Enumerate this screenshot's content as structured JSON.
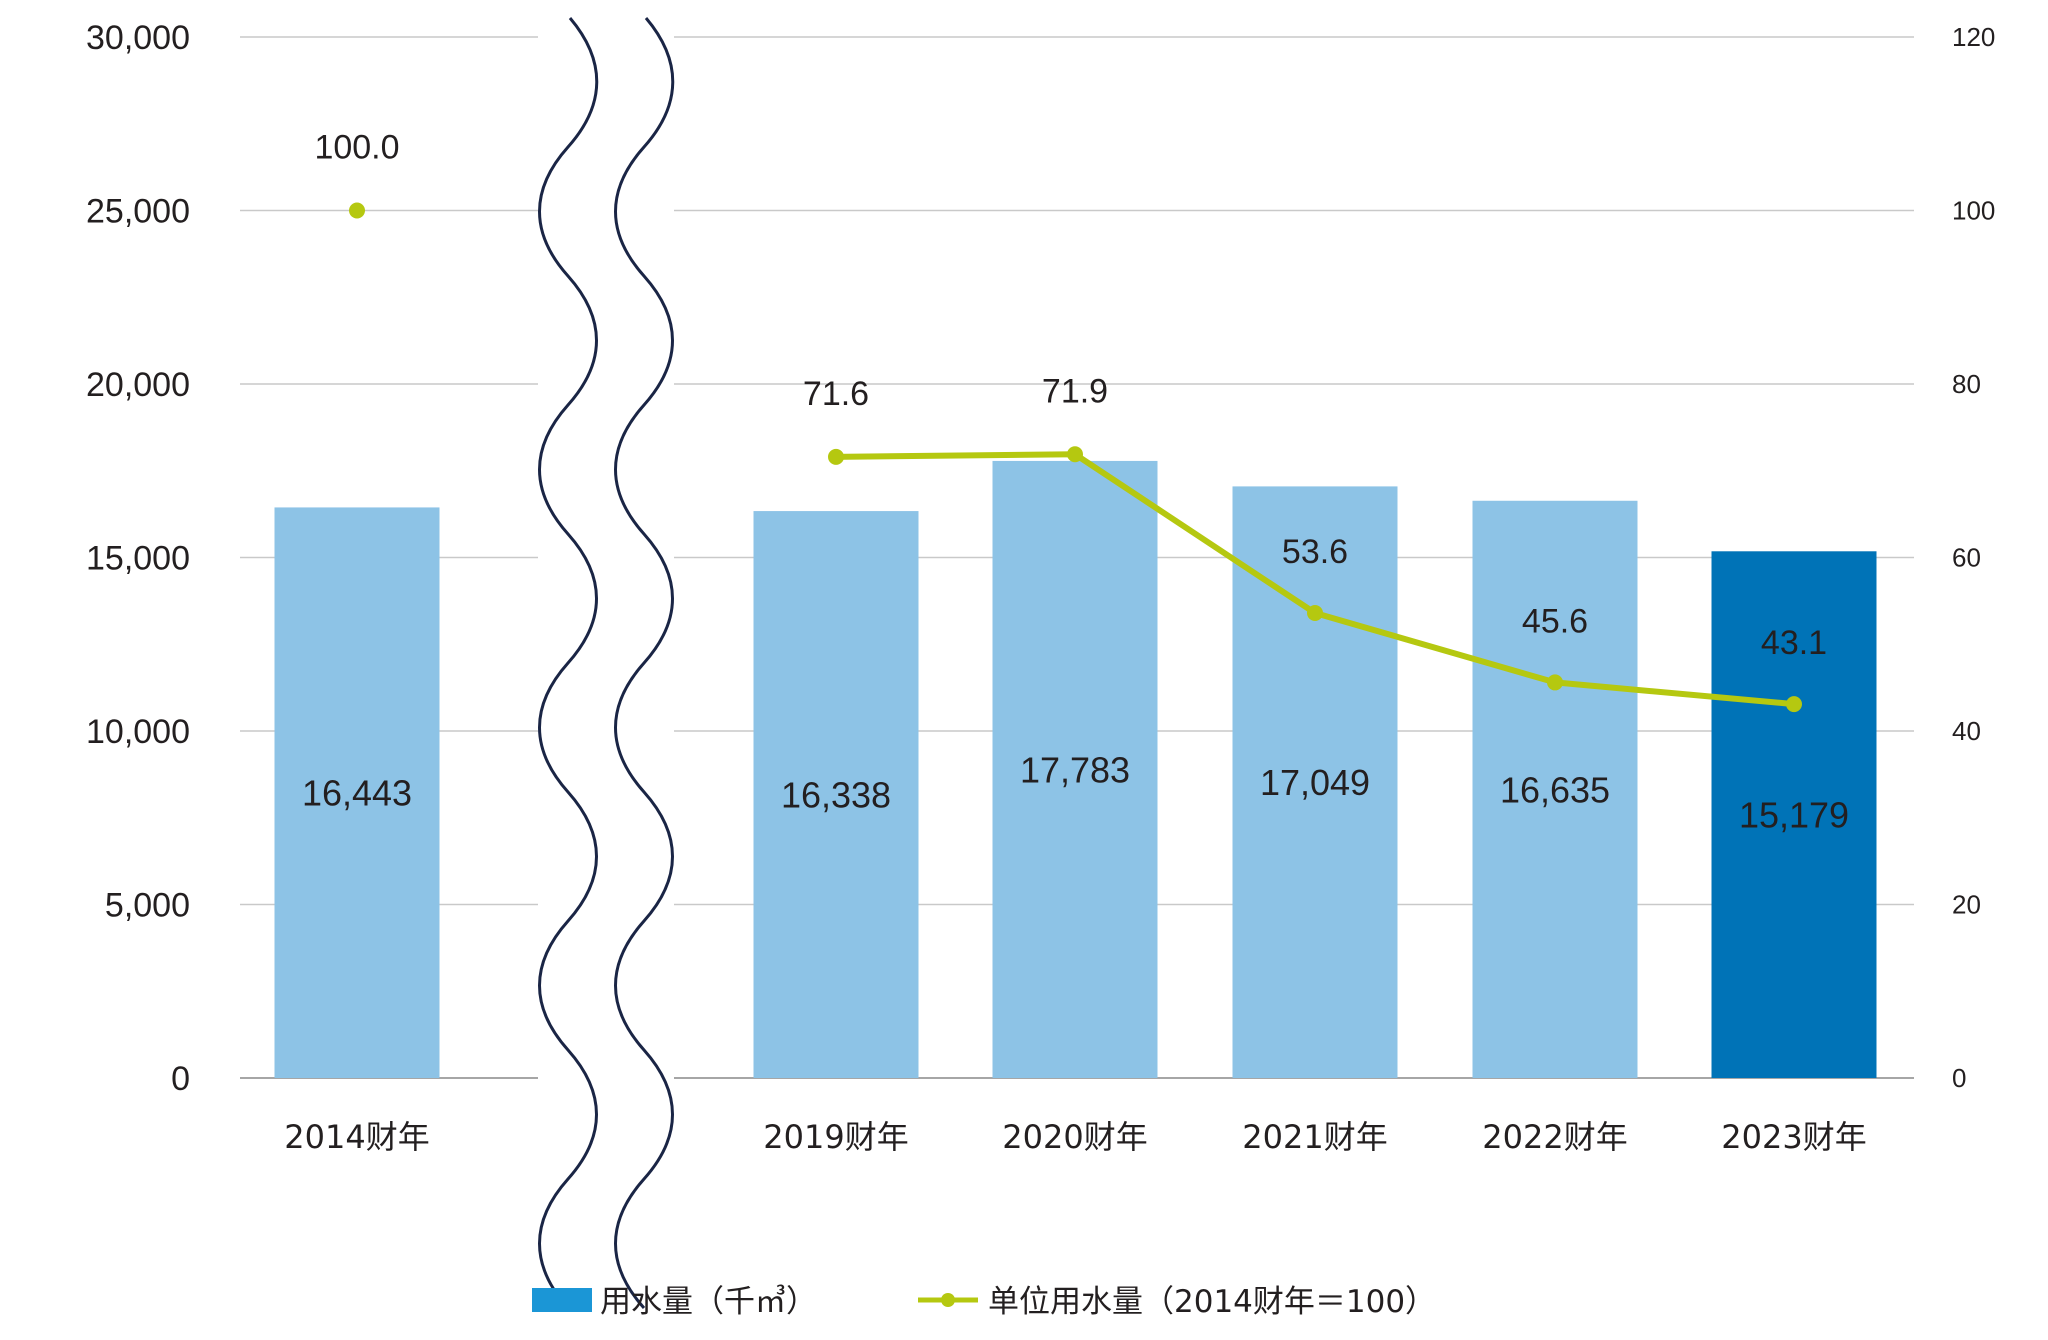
{
  "chart_data": {
    "type": "bar",
    "categories": [
      "2014财年",
      "2019财年",
      "2020财年",
      "2021财年",
      "2022财年",
      "2023财年"
    ],
    "series": [
      {
        "name": "用水量（千㎥）",
        "type": "bar",
        "axis": "left",
        "values": [
          16443,
          16338,
          17783,
          17049,
          16635,
          15179
        ],
        "labels": [
          "16,443",
          "16,338",
          "17,783",
          "17,049",
          "16,635",
          "15,179"
        ],
        "highlight_index": 5
      },
      {
        "name": "单位用水量（2014财年＝100）",
        "type": "line",
        "axis": "right",
        "values": [
          100.0,
          71.6,
          71.9,
          53.6,
          45.6,
          43.1
        ],
        "labels": [
          "100.0",
          "71.6",
          "71.9",
          "53.6",
          "45.6",
          "43.1"
        ],
        "connected_from_index": 1
      }
    ],
    "y_left": {
      "ylim": [
        0,
        30000
      ],
      "ticks": [
        0,
        5000,
        10000,
        15000,
        20000,
        25000,
        30000
      ],
      "tick_labels": [
        "0",
        "5,000",
        "10,000",
        "15,000",
        "20,000",
        "25,000",
        "30,000"
      ]
    },
    "y_right": {
      "ylim": [
        0,
        120
      ],
      "ticks": [
        0,
        20,
        40,
        60,
        80,
        100,
        120
      ],
      "tick_labels": [
        "0",
        "20",
        "40",
        "60",
        "80",
        "100",
        "120"
      ]
    },
    "axis_break": "between 2014财年 and 2019财年",
    "grid": true,
    "legend_position": "bottom-center",
    "colors": {
      "bar": "#8dc3e6",
      "bar_highlight": "#0073b7",
      "legend_bar": "#1b96d6",
      "line": "#b5c810",
      "grid": "#c9c9c9",
      "axis": "#a6a6a6",
      "break_line": "#1a2545",
      "text": "#231f20"
    }
  }
}
